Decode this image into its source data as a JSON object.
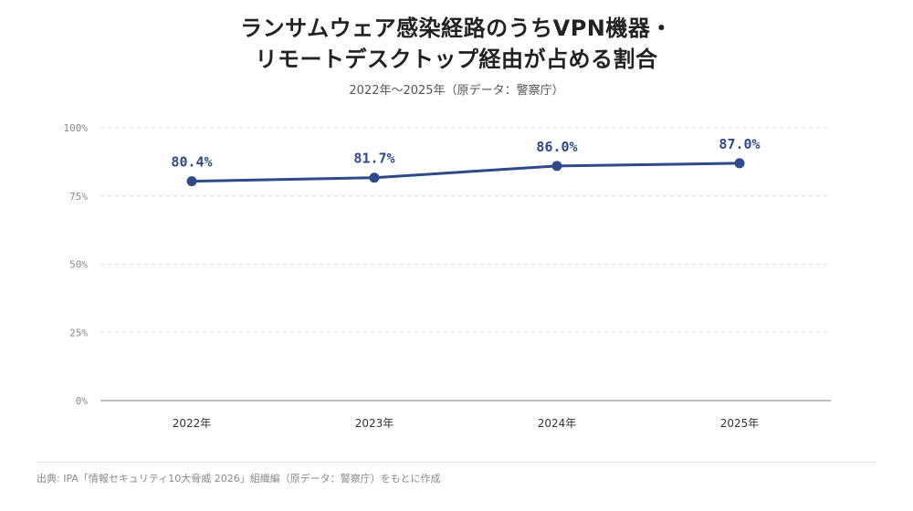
{
  "title_lines": [
    "ランサムウェア感染経路のうちVPN機器・",
    "リモートデスクトップ経由が占める割合"
  ],
  "subtitle": "2022年〜2025年（原データ：警察庁）",
  "source": "出典: IPA「情報セキュリティ10大脅威 2026」組織編（原データ：警察庁）をもとに作成",
  "colors": {
    "line": "#2e4a8a",
    "label": "#2e4a8a",
    "grid": "#dcdcdc",
    "baseline": "#9a9a9a",
    "tick": "#8a8a8a"
  },
  "chart_data": {
    "type": "line",
    "title": "ランサムウェア感染経路のうちVPN機器・リモートデスクトップ経由が占める割合",
    "subtitle": "2022年〜2025年（原データ：警察庁）",
    "categories": [
      "2022年",
      "2023年",
      "2024年",
      "2025年"
    ],
    "series": [
      {
        "values": [
          80.4,
          81.7,
          86.0,
          87.0
        ],
        "data_labels": [
          "80.4%",
          "81.7%",
          "86.0%",
          "87.0%"
        ]
      }
    ],
    "y_ticks": [
      0,
      25,
      50,
      75,
      100
    ],
    "y_tick_labels": [
      "0%",
      "25%",
      "50%",
      "75%",
      "100%"
    ],
    "ylim": [
      0,
      100
    ],
    "xlabel": "",
    "ylabel": "",
    "grid": true,
    "grid_style": "dashed",
    "legend": "none"
  }
}
